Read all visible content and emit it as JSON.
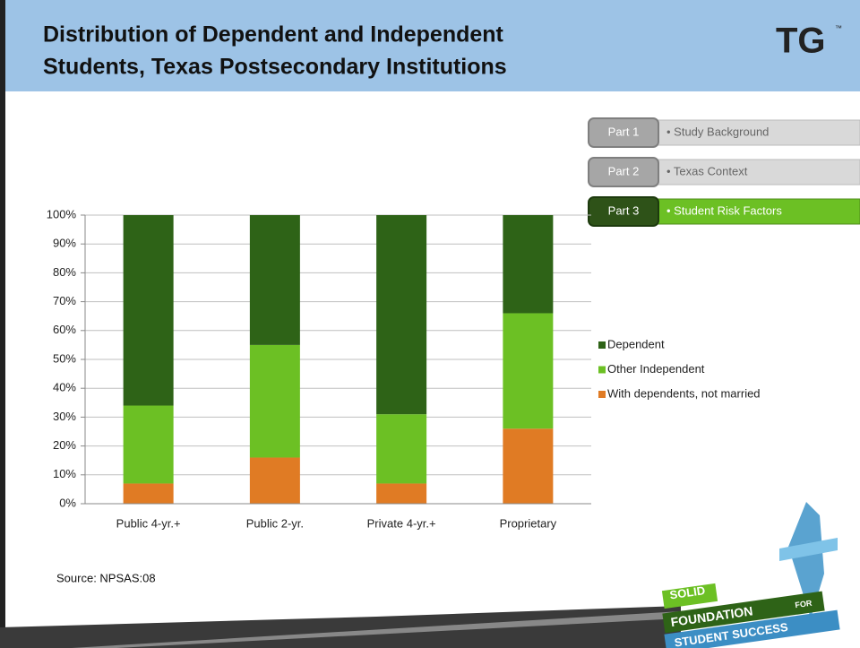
{
  "slide": {
    "title_lines": [
      "Distribution of Dependent and Independent",
      "Students, Texas Postsecondary Institutions"
    ],
    "brand": "TG",
    "brand_mark": "™",
    "nav": [
      {
        "part": "Part 1",
        "label": "• Study Background"
      },
      {
        "part": "Part 2",
        "label": "• Texas Context"
      },
      {
        "part": "Part 3",
        "label": "• Student Risk Factors"
      }
    ],
    "source": "Source: NPSAS:08",
    "logo": [
      "SOLID",
      "FOUNDATION",
      "FOR",
      "STUDENT SUCCESS"
    ]
  },
  "chart_data": {
    "type": "stacked_bar",
    "categories": [
      "Public 4-yr.+",
      "Public 2-yr.",
      "Private 4-yr.+",
      "Proprietary"
    ],
    "series": [
      {
        "name": "With dependents, not married",
        "color": "#e07b24",
        "values": [
          7,
          16,
          7,
          26
        ]
      },
      {
        "name": "Other Independent",
        "color": "#6cc024",
        "values": [
          27,
          39,
          24,
          40
        ]
      },
      {
        "name": "Dependent",
        "color": "#2e6317",
        "values": [
          66,
          45,
          69,
          34
        ]
      }
    ],
    "ylim": [
      0,
      100
    ],
    "yticks": [
      {
        "value": 0,
        "label": "0%"
      },
      {
        "value": 10,
        "label": "10%"
      },
      {
        "value": 20,
        "label": "20%"
      },
      {
        "value": 30,
        "label": "30%"
      },
      {
        "value": 40,
        "label": "40%"
      },
      {
        "value": 50,
        "label": "50%"
      },
      {
        "value": 60,
        "label": "60%"
      },
      {
        "value": 70,
        "label": "70%"
      },
      {
        "value": 80,
        "label": "80%"
      },
      {
        "value": 90,
        "label": "90%"
      },
      {
        "value": 100,
        "label": "100%"
      }
    ],
    "grid": true,
    "legend": "right"
  }
}
